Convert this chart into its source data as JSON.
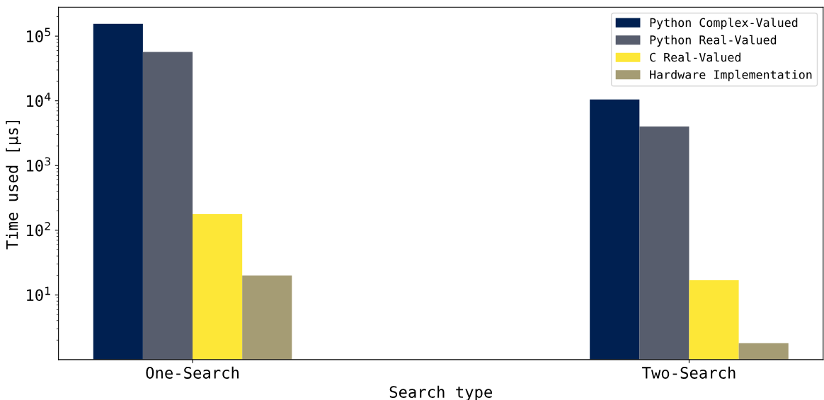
{
  "chart_data": {
    "type": "bar",
    "xlabel": "Search type",
    "ylabel": "Time used [μs]",
    "categories": [
      "One-Search",
      "Two-Search"
    ],
    "series": [
      {
        "name": "Python Complex-Valued",
        "color": "#002051",
        "values": [
          155000,
          10500
        ]
      },
      {
        "name": "Python Real-Valued",
        "color": "#575d6d",
        "values": [
          57000,
          4000
        ]
      },
      {
        "name": "C Real-Valued",
        "color": "#fde737",
        "values": [
          177,
          17
        ]
      },
      {
        "name": "Hardware Implementation",
        "color": "#a59c74",
        "values": [
          20,
          1.8
        ]
      }
    ],
    "log": "y",
    "ylim": [
      1,
      280000
    ],
    "yticks": [
      {
        "value": 10,
        "label": "10$^{1}$"
      },
      {
        "value": 100,
        "label": "10$^{2}$"
      },
      {
        "value": 1000,
        "label": "10$^{3}$"
      },
      {
        "value": 10000,
        "label": "10$^{4}$"
      },
      {
        "value": 100000,
        "label": "10$^{5}$"
      }
    ],
    "legend": "top right",
    "grid": false
  }
}
